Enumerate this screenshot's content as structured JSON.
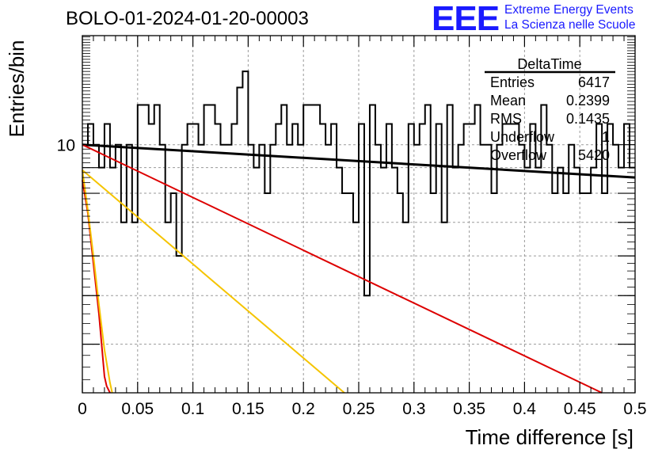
{
  "header": {
    "run_title": "BOLO-01-2024-01-20-00003",
    "logo_letters": "EEE",
    "logo_line1": "Extreme Energy Events",
    "logo_line2": "La Scienza nelle Scuole"
  },
  "stats": {
    "title": "DeltaTime",
    "rows": [
      {
        "label": "Entries",
        "value": "6417"
      },
      {
        "label": "Mean",
        "value": "0.2399"
      },
      {
        "label": "RMS",
        "value": "0.1435"
      },
      {
        "label": "Underflow",
        "value": "1"
      },
      {
        "label": "Overflow",
        "value": "5420"
      }
    ]
  },
  "colors": {
    "histogram": "#000000",
    "fit_black": "#000000",
    "fit_red": "#dd0000",
    "fit_yellow": "#f5c400",
    "grid": "#9a9a9a",
    "logo": "#1a1aff"
  },
  "chart_data": {
    "type": "line",
    "xlabel": "Time difference [s]",
    "ylabel": "Entries/bin",
    "xlim": [
      0,
      0.5
    ],
    "ylim": [
      3.2,
      16.5
    ],
    "yscale": "log",
    "grid": true,
    "legend": "top-right",
    "x_ticks": [
      "0",
      "0.05",
      "0.1",
      "0.15",
      "0.2",
      "0.25",
      "0.3",
      "0.35",
      "0.4",
      "0.45",
      "0.5"
    ],
    "y_tick_labels": [
      {
        "value": 10,
        "label": "10"
      }
    ],
    "histogram": {
      "bin_width": 0.005,
      "counts": [
        10,
        11,
        10,
        9,
        11,
        9,
        10,
        7,
        10,
        7,
        12,
        12,
        11,
        12,
        10,
        7,
        8,
        6,
        10,
        11,
        11,
        10,
        12,
        12,
        11,
        10,
        10,
        11,
        13,
        14,
        10,
        9,
        10,
        8,
        10,
        11,
        12,
        10,
        11,
        10,
        12,
        12,
        12,
        11,
        10,
        11,
        9,
        8,
        8,
        7,
        11,
        5,
        12,
        10,
        9,
        11,
        9,
        8,
        7,
        11,
        10,
        11,
        12,
        8,
        11,
        7,
        12,
        9,
        10,
        11,
        11,
        12,
        10,
        10,
        8,
        10,
        11,
        11,
        11,
        10,
        9,
        11,
        9,
        12,
        10,
        8,
        9,
        8,
        10,
        9,
        8,
        8,
        9,
        11,
        8,
        11,
        10,
        9,
        11,
        9
      ]
    },
    "series": [
      {
        "color": "black",
        "x": [
          0,
          0.5
        ],
        "y": [
          10,
          8.6
        ]
      },
      {
        "color": "red",
        "x": [
          0,
          0.47
        ],
        "y": [
          10,
          3.2
        ]
      },
      {
        "color": "yellow",
        "x": [
          0,
          0.237
        ],
        "y": [
          8.9,
          3.2
        ]
      },
      {
        "color": "red",
        "x": [
          0,
          0.005,
          0.01,
          0.015,
          0.02,
          0.022,
          0.025
        ],
        "y": [
          8.5,
          7.3,
          5.8,
          4.6,
          3.45,
          3.3,
          3.2
        ]
      },
      {
        "color": "yellow",
        "x": [
          0,
          0.005,
          0.01,
          0.015,
          0.02,
          0.025,
          0.027
        ],
        "y": [
          8.9,
          7.4,
          6.0,
          4.8,
          3.9,
          3.35,
          3.2
        ]
      }
    ]
  }
}
